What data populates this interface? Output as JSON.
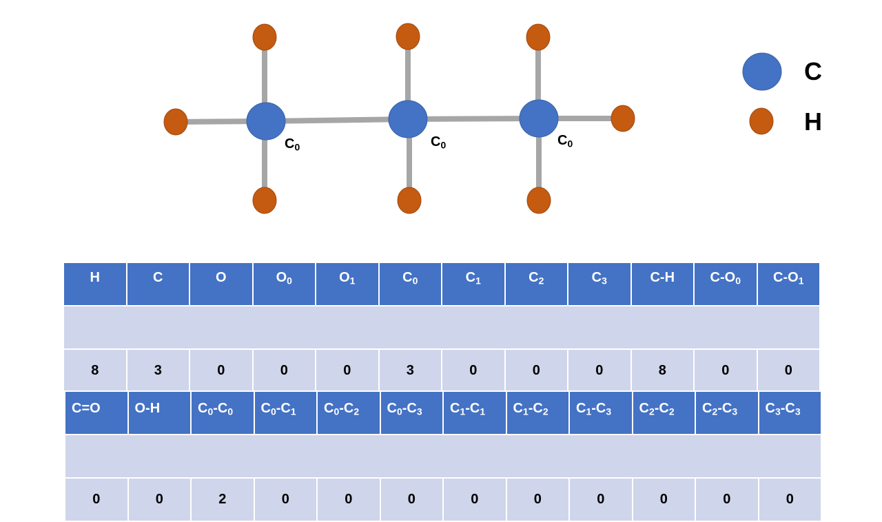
{
  "colors": {
    "carbon": "#4472c4",
    "hydrogen": "#c55a11",
    "bond": "#a6a6a6",
    "header_bg": "#4472c4",
    "cell_bg": "#cfd5ea"
  },
  "atom_labels": [
    {
      "base": "C",
      "sub": "0"
    },
    {
      "base": "C",
      "sub": "0"
    },
    {
      "base": "C",
      "sub": "0"
    }
  ],
  "legend": [
    {
      "element": "carbon",
      "label": "C"
    },
    {
      "element": "hydrogen",
      "label": "H"
    }
  ],
  "table1": {
    "headers": [
      {
        "base": "H",
        "sub": ""
      },
      {
        "base": "C",
        "sub": ""
      },
      {
        "base": "O",
        "sub": ""
      },
      {
        "base": "O",
        "sub": "0"
      },
      {
        "base": "O",
        "sub": "1"
      },
      {
        "base": "C",
        "sub": "0"
      },
      {
        "base": "C",
        "sub": "1"
      },
      {
        "base": "C",
        "sub": "2"
      },
      {
        "base": "C",
        "sub": "3"
      },
      {
        "base": "C-H",
        "sub": ""
      },
      {
        "base": "C-O",
        "sub": "0"
      },
      {
        "base": "C-O",
        "sub": "1"
      }
    ],
    "values": [
      "8",
      "3",
      "0",
      "0",
      "0",
      "3",
      "0",
      "0",
      "0",
      "8",
      "0",
      "0"
    ]
  },
  "table2": {
    "headers": [
      {
        "parts": [
          {
            "t": "C=O"
          }
        ]
      },
      {
        "parts": [
          {
            "t": "O-H"
          }
        ]
      },
      {
        "parts": [
          {
            "t": "C"
          },
          {
            "s": "0"
          },
          {
            "t": "-C"
          },
          {
            "s": "0"
          }
        ]
      },
      {
        "parts": [
          {
            "t": "C"
          },
          {
            "s": "0"
          },
          {
            "t": "-C"
          },
          {
            "s": "1"
          }
        ]
      },
      {
        "parts": [
          {
            "t": "C"
          },
          {
            "s": "0"
          },
          {
            "t": "-C"
          },
          {
            "s": "2"
          }
        ]
      },
      {
        "parts": [
          {
            "t": "C"
          },
          {
            "s": "0"
          },
          {
            "t": "-C"
          },
          {
            "s": "3"
          }
        ]
      },
      {
        "parts": [
          {
            "t": "C"
          },
          {
            "s": "1"
          },
          {
            "t": "-C"
          },
          {
            "s": "1"
          }
        ]
      },
      {
        "parts": [
          {
            "t": "C"
          },
          {
            "s": "1"
          },
          {
            "t": "-C"
          },
          {
            "s": "2"
          }
        ]
      },
      {
        "parts": [
          {
            "t": "C"
          },
          {
            "s": "1"
          },
          {
            "t": "-C"
          },
          {
            "s": "3"
          }
        ]
      },
      {
        "parts": [
          {
            "t": "C"
          },
          {
            "s": "2"
          },
          {
            "t": "-C"
          },
          {
            "s": "2"
          }
        ]
      },
      {
        "parts": [
          {
            "t": "C"
          },
          {
            "s": "2"
          },
          {
            "t": "-C"
          },
          {
            "s": "3"
          }
        ]
      },
      {
        "parts": [
          {
            "t": "C"
          },
          {
            "s": "3"
          },
          {
            "t": "-C"
          },
          {
            "s": "3"
          }
        ]
      }
    ],
    "values": [
      "0",
      "0",
      "2",
      "0",
      "0",
      "0",
      "0",
      "0",
      "0",
      "0",
      "0",
      "0"
    ]
  }
}
